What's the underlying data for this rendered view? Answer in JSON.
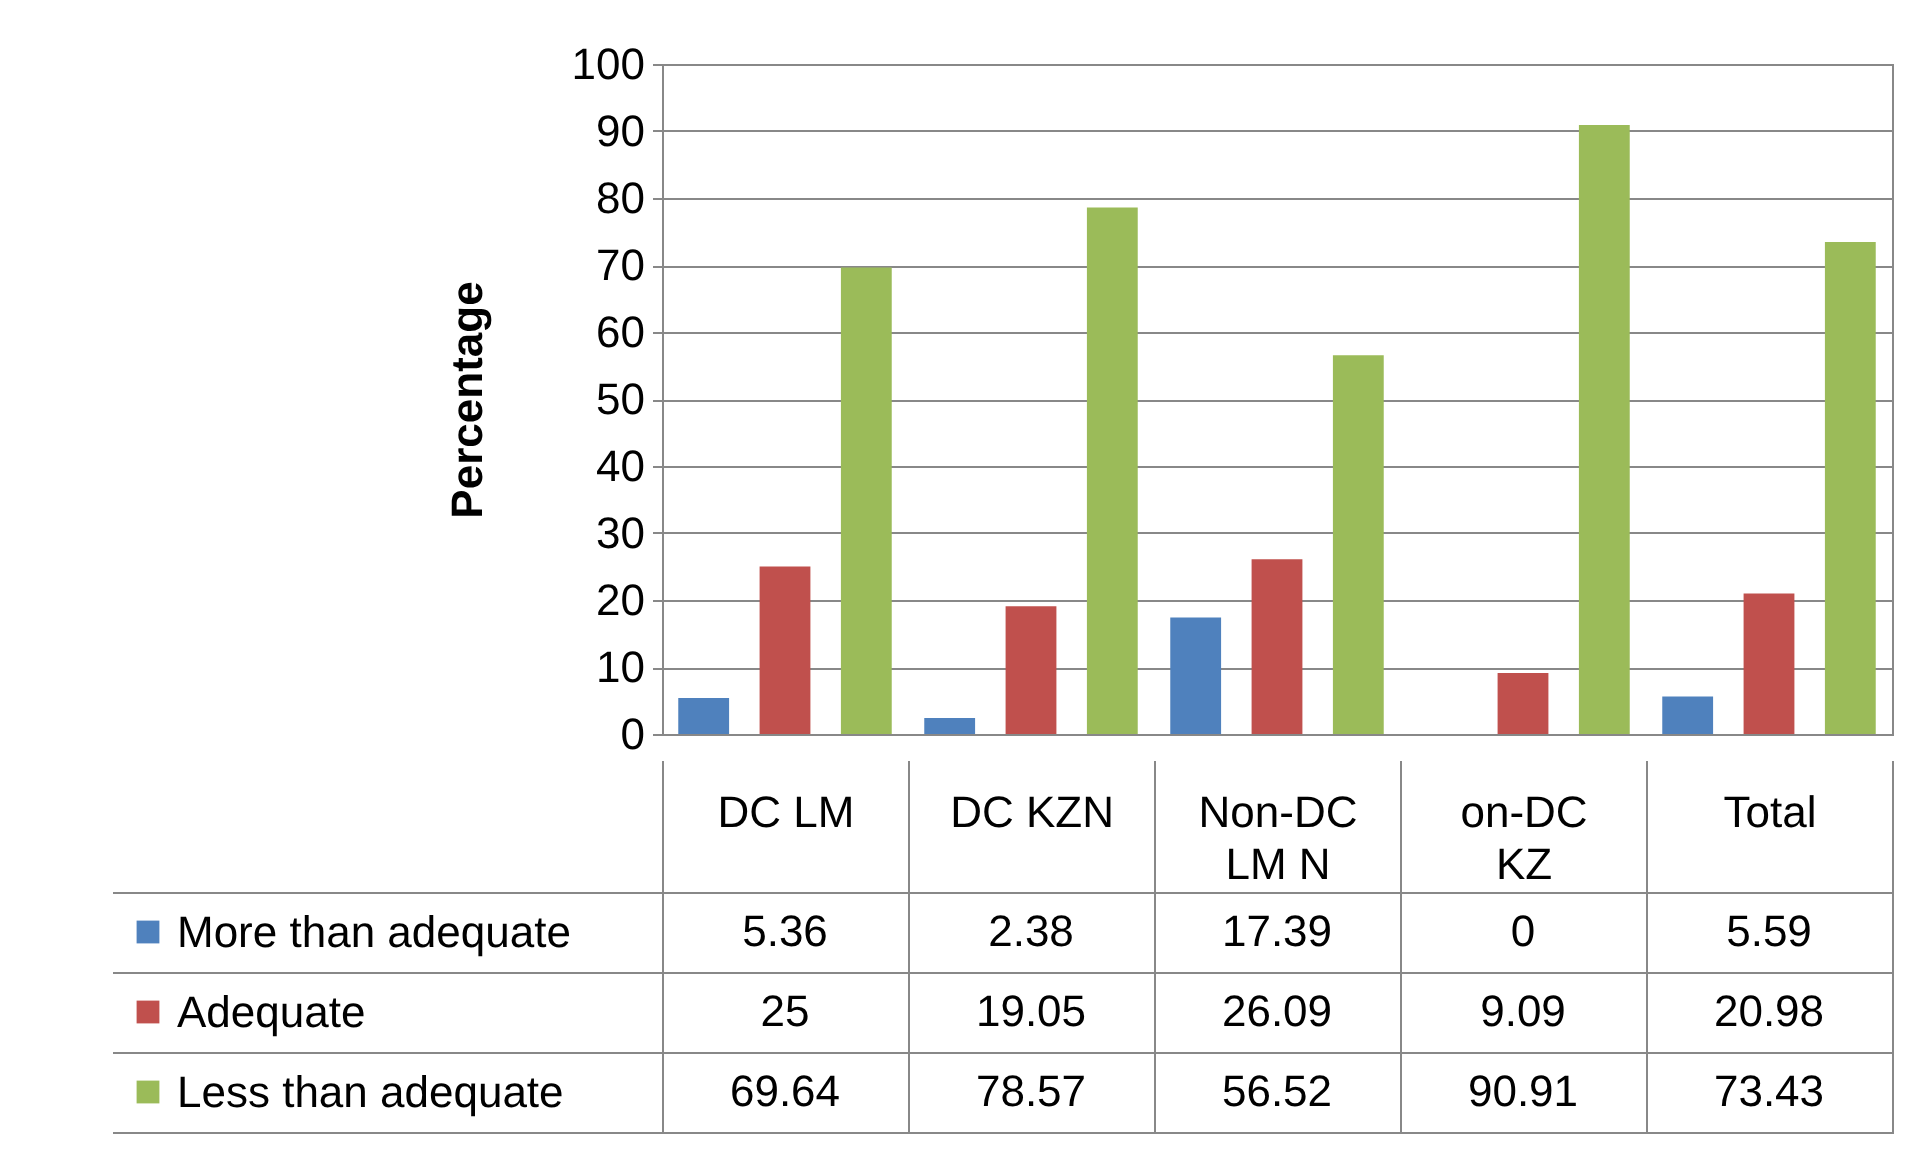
{
  "chart_data": {
    "type": "bar",
    "ylabel": "Percentage",
    "categories": [
      "DC LM",
      "DC KZN",
      "Non-DC LM N",
      "on-DC KZ",
      "Total"
    ],
    "series": [
      {
        "name": "More than adequate",
        "color": "#4f81bd",
        "values": [
          5.36,
          2.38,
          17.39,
          0,
          5.59
        ]
      },
      {
        "name": "Adequate",
        "color": "#c0504d",
        "values": [
          25,
          19.05,
          26.09,
          9.09,
          20.98
        ]
      },
      {
        "name": "Less than adequate",
        "color": "#9bbb59",
        "values": [
          69.64,
          78.57,
          56.52,
          90.91,
          73.43
        ]
      }
    ],
    "ylim": [
      0,
      100
    ],
    "yticks": [
      0,
      10,
      20,
      30,
      40,
      50,
      60,
      70,
      80,
      90,
      100
    ],
    "grid": "y",
    "data_labels": true,
    "legend": "bottom left"
  }
}
